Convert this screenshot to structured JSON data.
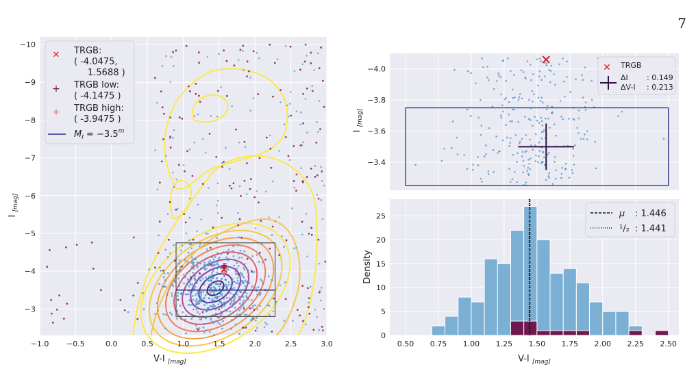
{
  "page_number": "7",
  "chart_data": [
    {
      "type": "scatter",
      "panel": "cmd",
      "xlabel": "V-I",
      "xlabel_sub": "[mag]",
      "ylabel": "I",
      "ylabel_sub": "[mag]",
      "xlim": [
        -1.0,
        3.0
      ],
      "ylim": [
        -2.3,
        -10.2
      ],
      "y_inverted": true,
      "grid": true,
      "xticks": [
        "−1.0",
        "−0.5",
        "0.0",
        "0.5",
        "1.0",
        "1.5",
        "2.0",
        "2.5",
        "3.0"
      ],
      "yticks": [
        "−10",
        "−9",
        "−8",
        "−7",
        "−6",
        "−5",
        "−4",
        "−3"
      ],
      "legend": {
        "position": "top-left",
        "entries": [
          {
            "marker": "x",
            "color": "#e31a1c",
            "label": "TRGB:",
            "detail": [
              "( -4.0475,",
              "1.5688 )"
            ]
          },
          {
            "marker": "+",
            "color": "#7a0f3a",
            "label": "TRGB low:",
            "detail": [
              "( -4.1475 )"
            ]
          },
          {
            "marker": "+",
            "color": "#f06a6a",
            "label": "TRGB high:",
            "detail": [
              "( -3.9475 )"
            ]
          },
          {
            "marker": "line",
            "color": "#2b2f8a",
            "label": "M_I = −3.5^m"
          }
        ]
      },
      "trgb": {
        "x": 1.5688,
        "y": -4.0475,
        "low": -4.1475,
        "high": -3.9475
      },
      "reference_line_y": -3.5,
      "selection_box": {
        "x": [
          0.9,
          2.28
        ],
        "y": [
          -2.8,
          -4.75
        ]
      },
      "point_colors": {
        "blue": "#4a90c8",
        "red": "#8e1b3f"
      }
    },
    {
      "type": "scatter",
      "panel": "zoom",
      "xlabel": "",
      "ylabel": "I",
      "ylabel_sub": "[mag]",
      "xlim": [
        0.38,
        2.58
      ],
      "ylim": [
        -3.22,
        -4.1
      ],
      "y_inverted": true,
      "yticks": [
        "−4.0",
        "−3.8",
        "−3.6",
        "−3.4"
      ],
      "legend": {
        "position": "top-right",
        "entries": [
          {
            "marker": "x",
            "color": "#e31a1c",
            "label": "TRGB"
          },
          {
            "marker": "errorbar",
            "color": "#2d0f47",
            "label": "ΔI",
            "value": ": 0.149"
          },
          {
            "marker": "none",
            "label": "ΔV-I",
            "value": ": 0.213"
          }
        ]
      },
      "trgb": {
        "x": 1.57,
        "y": -4.06
      },
      "errorbar": {
        "x": 1.57,
        "y": -3.5,
        "dx": 0.213,
        "dy": 0.149
      },
      "selection_box": {
        "x": [
          0.5,
          2.5
        ],
        "y": [
          -3.25,
          -3.75
        ]
      },
      "point_color": "#4a90c8"
    },
    {
      "type": "bar",
      "panel": "histogram",
      "xlabel": "V-I",
      "xlabel_sub": "[mag]",
      "ylabel": "Density",
      "xlim": [
        0.38,
        2.58
      ],
      "ylim": [
        0,
        28.5
      ],
      "xticks": [
        "0.50",
        "0.75",
        "1.00",
        "1.25",
        "1.50",
        "1.75",
        "2.00",
        "2.25",
        "2.50"
      ],
      "yticks": [
        "0",
        "5",
        "10",
        "15",
        "20",
        "25"
      ],
      "bin_edges": [
        0.7,
        0.8,
        0.9,
        1.0,
        1.1,
        1.2,
        1.3,
        1.4,
        1.5,
        1.6,
        1.7,
        1.8,
        1.9,
        2.0,
        2.1,
        2.2,
        2.3,
        2.4,
        2.5
      ],
      "series": [
        {
          "name": "",
          "color": "#7bafd4",
          "values": [
            2,
            4,
            8,
            7,
            16,
            15,
            22,
            27,
            20,
            13,
            14,
            11,
            7,
            5,
            5,
            2,
            0,
            0
          ]
        },
        {
          "name": "",
          "color": "#6e1a4f",
          "values": [
            0,
            0,
            0,
            0,
            0,
            0,
            3,
            3,
            1,
            1,
            1,
            1,
            0,
            0,
            0,
            1,
            0,
            1
          ]
        }
      ],
      "vlines": [
        {
          "style": "dashed",
          "x": 1.446,
          "label": "μ",
          "value": ": 1.446"
        },
        {
          "style": "dotted",
          "x": 1.441,
          "label": "¹/₂",
          "value": ": 1.441"
        }
      ],
      "legend": {
        "position": "top-right"
      }
    }
  ]
}
